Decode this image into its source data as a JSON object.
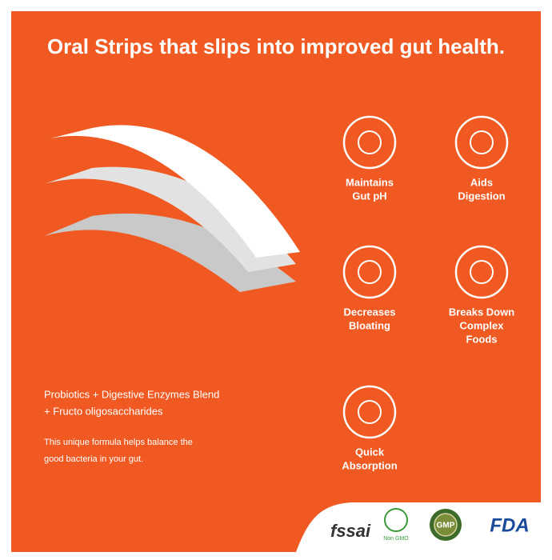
{
  "header": {
    "title": "Oral Strips that slips into improved gut health."
  },
  "features": [
    {
      "label": [
        "Maintains",
        "Gut pH"
      ]
    },
    {
      "label": [
        "Aids",
        "Digestion"
      ]
    },
    {
      "label": [
        "Decreases",
        "Bloating"
      ]
    },
    {
      "label": [
        "Breaks Down",
        "Complex",
        "Foods"
      ]
    },
    {
      "label": [
        "Quick",
        "Absorption"
      ]
    }
  ],
  "description": {
    "ingredients": [
      "Probiotics + Digestive Enzymes Blend",
      "+ Fructo oligosaccharides"
    ],
    "note": [
      "This unique formula helps balance the",
      "good bacteria in your gut."
    ]
  },
  "logos": {
    "fssai": "fssai",
    "non_gmo": "Non GMO",
    "gmp": "GMP",
    "fda": "FDA"
  }
}
